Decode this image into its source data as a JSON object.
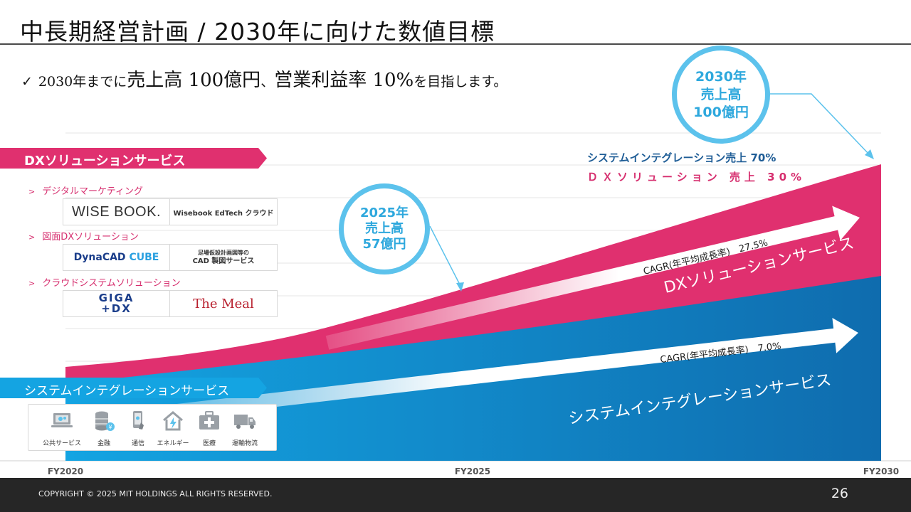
{
  "title": "中長期経営計画 / 2030年に向けた数値目標",
  "lead": {
    "check": "✓",
    "p1": "2030年までに",
    "p2": "売上高 100億円",
    "p3": "、",
    "p4": "営業利益率 10%",
    "p5": "を目指します。"
  },
  "dx_section": {
    "banner": "DXソリューションサービス",
    "categories": [
      {
        "label": "デジタルマーケティング",
        "logo1": "WISE BOOK.",
        "logo2": "Wisebook EdTech クラウド"
      },
      {
        "label": "図面DXソリューション",
        "logo1_a": "DynaCAD",
        "logo1_b": "CUBE",
        "logo2_a": "足場仮設計画図等の",
        "logo2_b": "CAD 製図サービス"
      },
      {
        "label": "クラウドシステムソリューション",
        "logo1_a": "GIGA",
        "logo1_b": "+DX",
        "logo2": "The Meal"
      }
    ]
  },
  "si_section": {
    "banner": "システムインテグレーションサービス",
    "items": [
      "公共サービス",
      "金融",
      "通信",
      "エネルギー",
      "医療",
      "運輸物流"
    ]
  },
  "bubbles": {
    "b2025": {
      "year": "2025年",
      "label": "売上高",
      "value": "57億円"
    },
    "b2030": {
      "year": "2030年",
      "label": "売上高",
      "value": "100億円"
    }
  },
  "shares": {
    "si": "システムインテグレーション売上 70%",
    "dx": "ＤＸソリューション 売上 30%"
  },
  "chart_data": {
    "type": "area",
    "x": [
      "FY2020",
      "FY2025",
      "FY2030"
    ],
    "series": [
      {
        "name": "システムインテグレーションサービス",
        "color": "#1b8fd6",
        "cagr_label": "CAGR(年平均成長率)",
        "cagr": "7.0%"
      },
      {
        "name": "DXソリューションサービス",
        "color": "#e0306f",
        "cagr_label": "CAGR(年平均成長率)",
        "cagr": "27.5%"
      }
    ],
    "totals": [
      {
        "x": "FY2025",
        "label": "57億円"
      },
      {
        "x": "FY2030",
        "label": "100億円"
      }
    ],
    "mix_2030": {
      "si": 70,
      "dx": 30
    },
    "grid": true
  },
  "colors": {
    "pink": "#e0306f",
    "blue": "#1b8fd6",
    "bubble": "#5cc2ec"
  },
  "footer": {
    "copyright": "COPYRIGHT © 2025 MIT HOLDINGS ALL RIGHTS RESERVED.",
    "page": "26"
  }
}
